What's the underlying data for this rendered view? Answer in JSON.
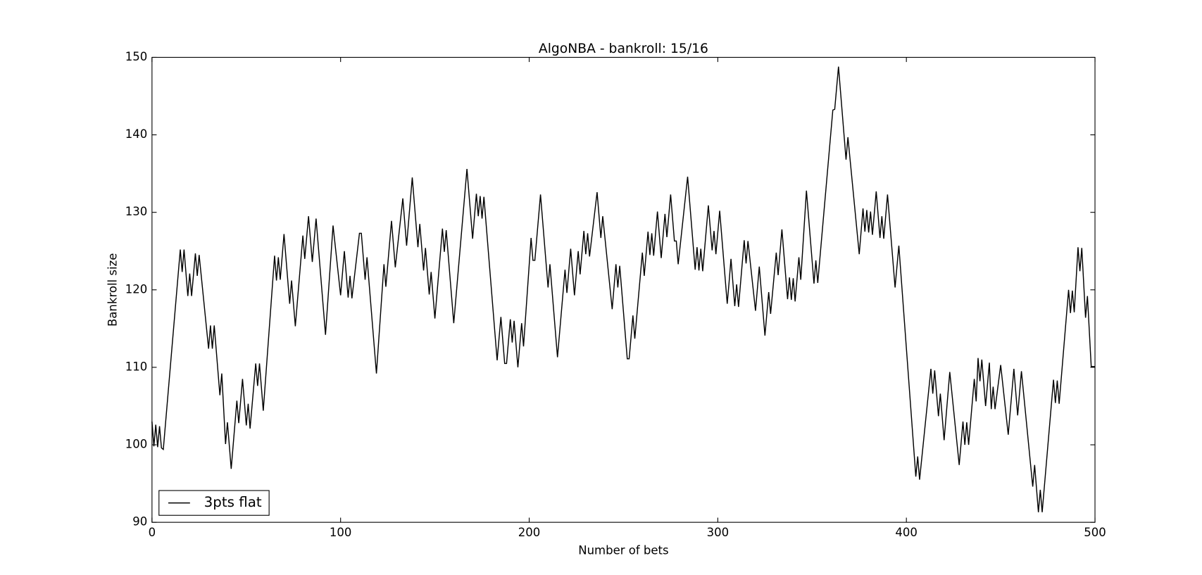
{
  "chart_data": {
    "type": "line",
    "title": "AlgoNBA - bankroll: 15/16",
    "xlabel": "Number of bets",
    "ylabel": "Bankroll size",
    "legend": "lower left",
    "xlim": [
      0,
      500
    ],
    "ylim": [
      90,
      150
    ],
    "xticks": [
      0,
      100,
      200,
      300,
      400,
      500
    ],
    "yticks": [
      90,
      100,
      110,
      120,
      130,
      140,
      150
    ],
    "x": [
      0,
      1,
      2,
      3,
      4,
      5,
      6,
      15,
      16,
      17,
      19,
      20,
      21,
      23,
      24,
      25,
      30,
      31,
      32,
      33,
      36,
      37,
      39,
      40,
      42,
      45,
      46,
      48,
      50,
      51,
      52,
      55,
      56,
      57,
      59,
      65,
      66,
      67,
      68,
      70,
      73,
      74,
      76,
      80,
      81,
      83,
      85,
      87,
      92,
      96,
      100,
      102,
      104,
      105,
      106,
      110,
      111,
      113,
      114,
      119,
      123,
      124,
      127,
      129,
      133,
      135,
      138,
      141,
      142,
      144,
      145,
      147,
      148,
      150,
      154,
      155,
      156,
      160,
      167,
      170,
      172,
      173,
      174,
      175,
      176,
      183,
      185,
      187,
      188,
      190,
      191,
      192,
      194,
      196,
      197,
      201,
      202,
      203,
      206,
      210,
      211,
      215,
      219,
      220,
      222,
      224,
      226,
      227,
      229,
      230,
      231,
      232,
      236,
      238,
      239,
      244,
      246,
      247,
      248,
      252,
      253,
      255,
      256,
      260,
      261,
      263,
      264,
      265,
      266,
      268,
      270,
      272,
      273,
      275,
      277,
      278,
      279,
      284,
      288,
      289,
      290,
      291,
      292,
      295,
      297,
      298,
      299,
      301,
      305,
      306,
      307,
      309,
      310,
      311,
      314,
      315,
      316,
      320,
      322,
      325,
      327,
      328,
      331,
      332,
      334,
      337,
      338,
      339,
      340,
      341,
      343,
      344,
      347,
      351,
      352,
      353,
      361,
      362,
      364,
      368,
      369,
      375,
      377,
      378,
      379,
      380,
      381,
      382,
      384,
      386,
      387,
      388,
      390,
      394,
      396,
      405,
      406,
      407,
      413,
      414,
      415,
      417,
      418,
      420,
      423,
      428,
      430,
      431,
      432,
      433,
      436,
      437,
      438,
      439,
      440,
      442,
      444,
      445,
      446,
      447,
      450,
      454,
      457,
      459,
      461,
      467,
      468,
      470,
      471,
      472,
      478,
      479,
      480,
      481,
      486,
      487,
      488,
      489,
      491,
      492,
      493,
      495,
      496,
      498,
      500
    ],
    "series": [
      {
        "name": "3pts flat",
        "color": "#000000",
        "values": [
          103,
          99.8,
          102.6,
          99.7,
          102.4,
          99.6,
          99.4,
          125.2,
          122.3,
          125.2,
          119.2,
          122.1,
          119.2,
          124.7,
          121.8,
          124.5,
          112.4,
          115.4,
          112.4,
          115.4,
          106.4,
          109.2,
          100.1,
          102.9,
          96.9,
          105.7,
          102.8,
          108.5,
          102.5,
          105.3,
          102.1,
          110.5,
          107.6,
          110.5,
          104.4,
          124.4,
          121.2,
          124.2,
          121.3,
          127.2,
          118.2,
          121.2,
          115.3,
          127,
          124,
          129.5,
          123.6,
          129.2,
          114.2,
          128.3,
          119.3,
          125,
          119,
          121.8,
          118.9,
          127.3,
          127.3,
          121.3,
          124.2,
          109.2,
          123.3,
          120.4,
          128.9,
          122.9,
          131.8,
          125.7,
          134.5,
          125.5,
          128.5,
          122.5,
          125.4,
          119.4,
          122.3,
          116.3,
          127.9,
          124.9,
          127.7,
          115.7,
          135.6,
          126.6,
          132.4,
          129.5,
          132.1,
          129.2,
          132,
          110.9,
          116.5,
          110.5,
          110.5,
          116.2,
          113.2,
          116,
          110,
          115.7,
          112.7,
          126.7,
          123.8,
          123.8,
          132.3,
          120.3,
          123.3,
          111.3,
          122.6,
          119.6,
          125.3,
          119.3,
          125,
          122,
          127.6,
          124.6,
          127.3,
          124.3,
          132.6,
          126.7,
          129.5,
          117.5,
          123.3,
          120.3,
          123.1,
          111.1,
          111.1,
          116.7,
          113.7,
          124.8,
          121.8,
          127.5,
          124.5,
          127.3,
          124.4,
          130.1,
          124.1,
          129.8,
          126.8,
          132.3,
          126.3,
          126.3,
          123.3,
          134.6,
          122.6,
          125.5,
          122.5,
          125.3,
          122.4,
          130.9,
          125.1,
          127.6,
          124.6,
          130.2,
          118.2,
          121,
          124,
          117.9,
          120.7,
          117.8,
          126.4,
          123.4,
          126.3,
          117.3,
          123,
          114.1,
          119.7,
          116.9,
          124.8,
          121.9,
          127.8,
          118.8,
          121.6,
          118.7,
          121.5,
          118.5,
          124.2,
          121.3,
          132.8,
          120.8,
          123.8,
          120.9,
          143.2,
          143.3,
          148.8,
          136.8,
          139.7,
          124.6,
          130.5,
          127.5,
          130.3,
          127.4,
          130.1,
          127.1,
          132.7,
          126.7,
          129.5,
          126.6,
          132.3,
          120.3,
          125.7,
          95.9,
          98.5,
          95.5,
          109.8,
          106.6,
          109.6,
          103.7,
          106.6,
          100.6,
          109.4,
          97.4,
          103,
          100,
          102.9,
          100,
          108.5,
          105.6,
          111.2,
          108.2,
          111,
          105,
          110.6,
          104.6,
          107.5,
          104.6,
          110.3,
          101.3,
          109.8,
          103.8,
          109.5,
          94.6,
          97.4,
          91.3,
          94.2,
          91.3,
          108.4,
          105.4,
          108.3,
          105.3,
          120,
          117,
          119.9,
          117.1,
          125.5,
          122.4,
          125.4,
          116.4,
          119.2,
          110.1,
          110.1
        ]
      }
    ]
  }
}
